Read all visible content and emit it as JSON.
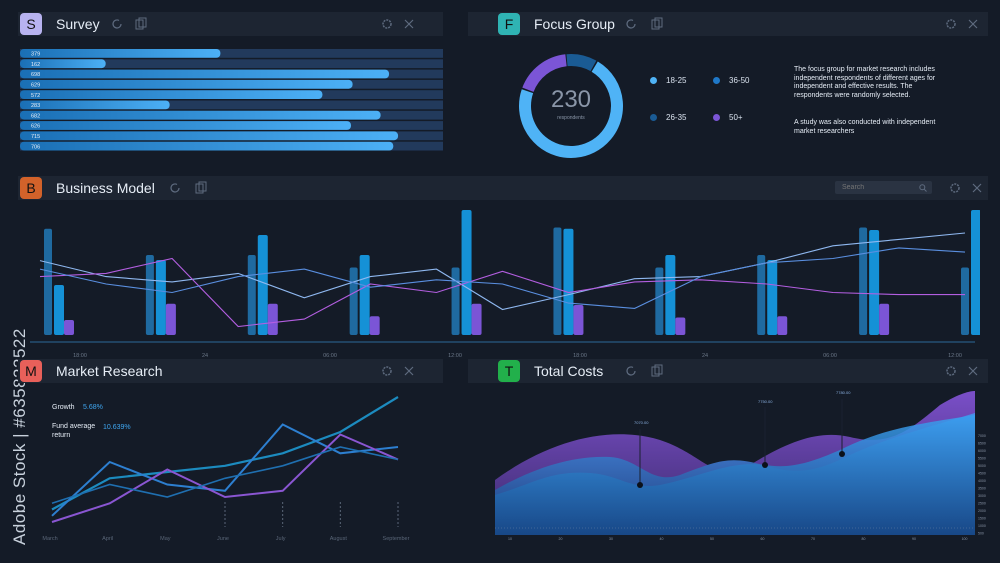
{
  "panels": {
    "survey": {
      "badge": "S",
      "title": "Survey",
      "badge_color": "#b8b3f0"
    },
    "focus": {
      "badge": "F",
      "title": "Focus Group",
      "badge_color": "#2fb3b3"
    },
    "business": {
      "badge": "B",
      "title": "Business Model",
      "badge_color": "#d2622a"
    },
    "market": {
      "badge": "M",
      "title": "Market Research",
      "badge_color": "#e8605a"
    },
    "costs": {
      "badge": "T",
      "title": "Total Costs",
      "badge_color": "#22b04b"
    }
  },
  "search": {
    "placeholder": "Search"
  },
  "watermark": "Adobe Stock | #635822522",
  "survey_bars": [
    {
      "label": "379",
      "value": 379
    },
    {
      "label": "162",
      "value": 162
    },
    {
      "label": "698",
      "value": 698
    },
    {
      "label": "629",
      "value": 629
    },
    {
      "label": "572",
      "value": 572
    },
    {
      "label": "283",
      "value": 283
    },
    {
      "label": "682",
      "value": 682
    },
    {
      "label": "626",
      "value": 626
    },
    {
      "label": "715",
      "value": 715
    },
    {
      "label": "706",
      "value": 706
    }
  ],
  "focus_group": {
    "total": "230",
    "total_label": "respondents",
    "legend": [
      {
        "label": "18-25",
        "color": "#4fb3f6"
      },
      {
        "label": "36-50",
        "color": "#1f78c8"
      },
      {
        "label": "26-35",
        "color": "#1a5b94"
      },
      {
        "label": "50+",
        "color": "#7b55d6"
      }
    ],
    "segments": [
      {
        "value": 0.1,
        "color": "#1a5b94"
      },
      {
        "value": 0.72,
        "color": "#4fb3f6"
      },
      {
        "value": 0.18,
        "color": "#7b55d6"
      }
    ],
    "note1": "The focus group for market research includes independent respondents of different ages for independent and effective results. The respondents were randomly selected.",
    "note2": "A study was also conducted with independent market researchers"
  },
  "colors": {
    "bar_dark": "#1f6aa0",
    "bar_bright": "#1591d6",
    "bar_purple": "#7b55d6",
    "line_blue": "#5a8fe0",
    "line_violet": "#b35ee0",
    "line_light": "#8fb8f0"
  },
  "business": {
    "x_ticks": [
      "18:00",
      "24",
      "06:00",
      "12:00",
      "18:00",
      "24",
      "06:00",
      "12:00"
    ],
    "groups": [
      {
        "dark": 0.85,
        "bright": 0.4,
        "purple": 0.12
      },
      {
        "dark": 0.64,
        "bright": 0.6,
        "purple": 0.25
      },
      {
        "dark": 0.64,
        "bright": 0.8,
        "purple": 0.25
      },
      {
        "dark": 0.54,
        "bright": 0.64,
        "purple": 0.15
      },
      {
        "dark": 0.54,
        "bright": 1.0,
        "purple": 0.25
      },
      {
        "dark": 0.86,
        "bright": 0.85,
        "purple": 0.24
      },
      {
        "dark": 0.54,
        "bright": 0.64,
        "purple": 0.14
      },
      {
        "dark": 0.64,
        "bright": 0.6,
        "purple": 0.15
      },
      {
        "dark": 0.86,
        "bright": 0.84,
        "purple": 0.25
      },
      {
        "dark": 0.54,
        "bright": 1.0,
        "purple": 0.24
      }
    ],
    "line_a": [
      0.7,
      0.55,
      0.5,
      0.58,
      0.35,
      0.55,
      0.62,
      0.24,
      0.38,
      0.53,
      0.55,
      0.68,
      0.84,
      0.9,
      0.96
    ],
    "line_b": [
      0.55,
      0.58,
      0.72,
      0.08,
      0.15,
      0.48,
      0.4,
      0.6,
      0.4,
      0.5,
      0.52,
      0.48,
      0.4,
      0.38,
      0.38
    ],
    "line_c": [
      0.62,
      0.48,
      0.4,
      0.55,
      0.62,
      0.45,
      0.52,
      0.48,
      0.3,
      0.25,
      0.55,
      0.68,
      0.72,
      0.82,
      0.78
    ]
  },
  "market": {
    "stat1_label": "Growth",
    "stat1_value": "5.68%",
    "stat2_label": "Fund average return",
    "stat2_value": "10.639%",
    "months": [
      "March",
      "April",
      "May",
      "June",
      "July",
      "August",
      "September"
    ],
    "teal": [
      0.1,
      0.35,
      0.4,
      0.45,
      0.55,
      0.72,
      1.0
    ],
    "blue": [
      0.05,
      0.48,
      0.3,
      0.25,
      0.78,
      0.55,
      0.6
    ],
    "purple": [
      0.0,
      0.15,
      0.42,
      0.2,
      0.25,
      0.7,
      0.5
    ],
    "blue2": [
      0.15,
      0.3,
      0.2,
      0.35,
      0.45,
      0.6,
      0.5
    ]
  },
  "costs": {
    "annotations": [
      "7070.00",
      "7750.00",
      "7780.00"
    ],
    "y_ticks": [
      "7000",
      "6500",
      "6000",
      "5500",
      "5000",
      "4500",
      "4000",
      "3500",
      "3000",
      "2500",
      "2000",
      "1500",
      "1000",
      "500"
    ],
    "x_ticks": [
      "10",
      "20",
      "30",
      "40",
      "50",
      "60",
      "70",
      "80",
      "90",
      "100"
    ]
  }
}
